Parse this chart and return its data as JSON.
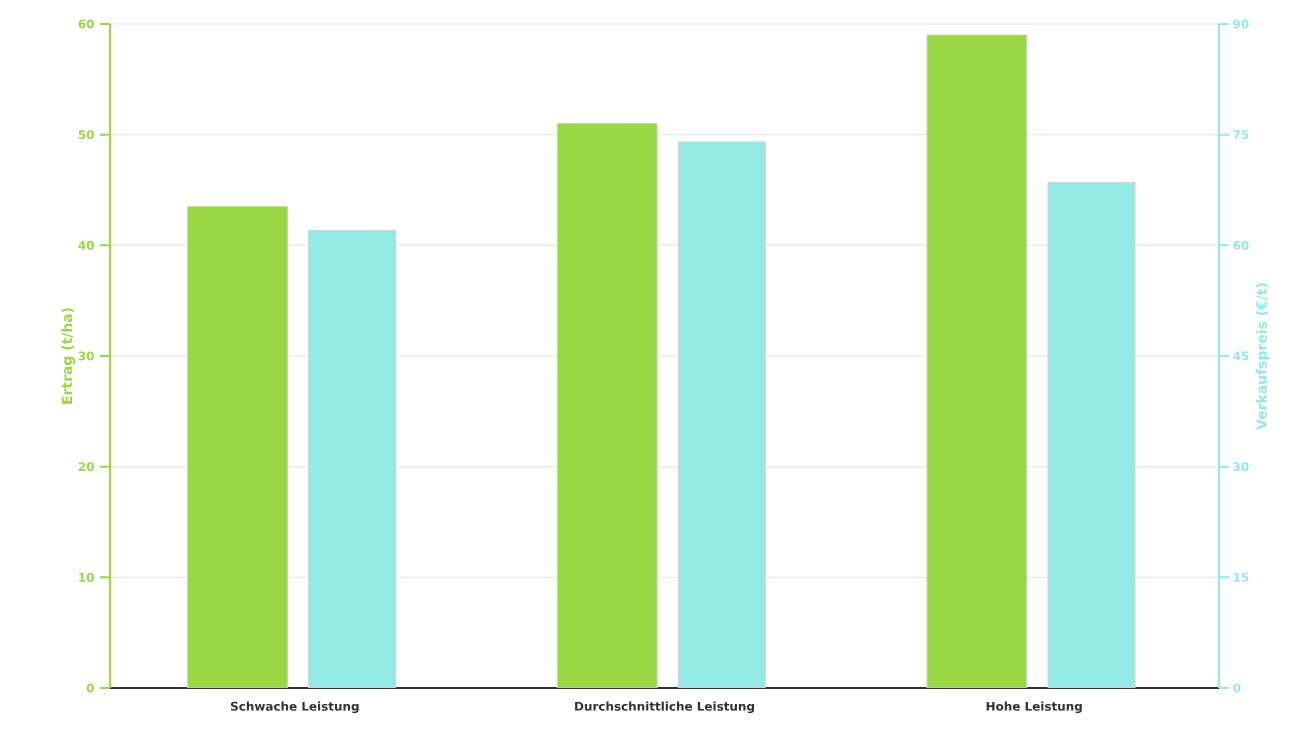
{
  "chart_data": {
    "type": "bar",
    "categories": [
      "Schwache Leistung",
      "Durchschnittliche Leistung",
      "Hohe Leistung"
    ],
    "ylabel": "Ertrag (t/ha)",
    "y2label": "Verkaufspreis (€/t)",
    "series": [
      {
        "color": "#99d744",
        "values": [
          43.5,
          51.0,
          59.0
        ]
      },
      {
        "color": "#93e9e3",
        "values": [
          62,
          74,
          68.5
        ],
        "axis": "y2"
      }
    ],
    "ylim": [
      0,
      60
    ],
    "yticks": [
      0,
      10,
      20,
      30,
      40,
      50,
      60
    ],
    "y2lim": [
      0,
      90
    ],
    "y2ticks": [
      0,
      15,
      30,
      45,
      60,
      75,
      90
    ],
    "grid": "y"
  }
}
